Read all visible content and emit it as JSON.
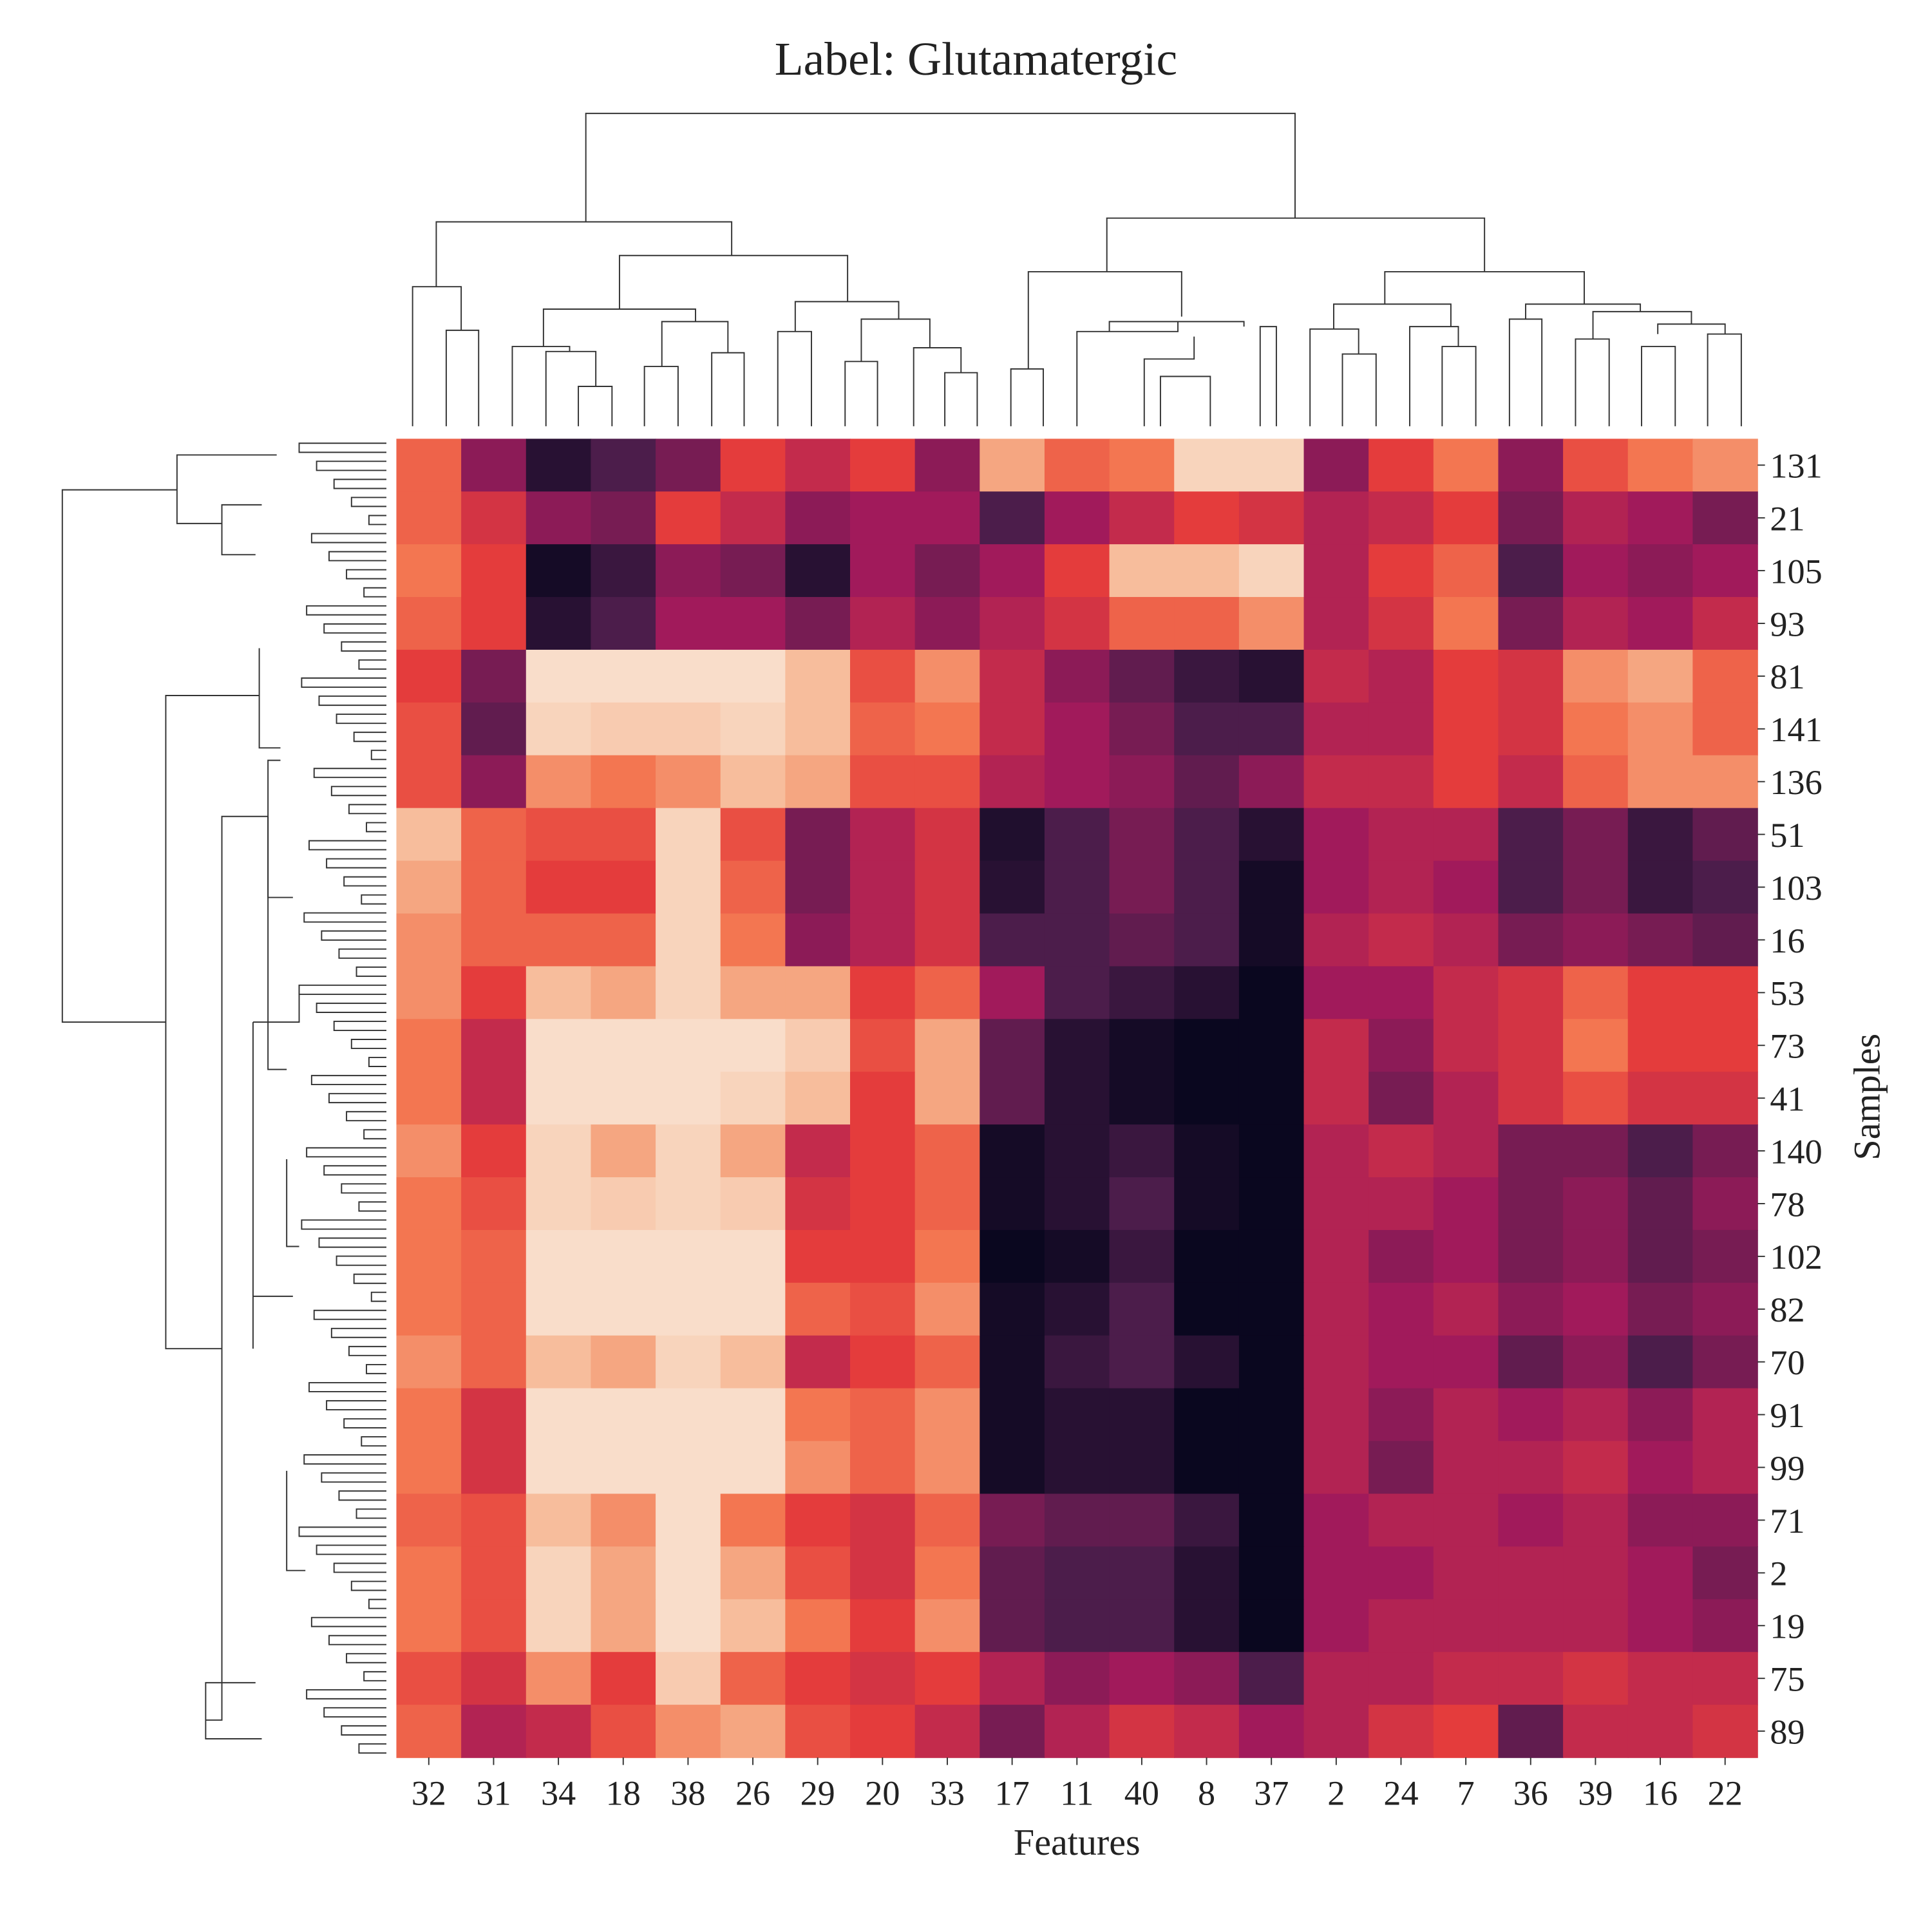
{
  "chart_data": {
    "type": "heatmap",
    "title": "Label: Glutamatergic",
    "x_label": "Features",
    "y_label": "Samples",
    "x_categories": [
      "32",
      "31",
      "34",
      "18",
      "38",
      "26",
      "29",
      "20",
      "33",
      "17",
      "11",
      "40",
      "8",
      "37",
      "2",
      "24",
      "7",
      "36",
      "39",
      "16",
      "22"
    ],
    "y_categories": [
      "131",
      "21",
      "105",
      "93",
      "81",
      "141",
      "136",
      "51",
      "103",
      "16",
      "53",
      "73",
      "41",
      "140",
      "78",
      "102",
      "82",
      "70",
      "91",
      "99",
      "71",
      "2",
      "19",
      "75",
      "89"
    ],
    "values": [
      [
        0.7,
        0.35,
        0.1,
        0.2,
        0.3,
        0.6,
        0.5,
        0.6,
        0.35,
        0.85,
        0.7,
        0.75,
        0.95,
        0.95,
        0.35,
        0.6,
        0.75,
        0.35,
        0.65,
        0.75,
        0.8
      ],
      [
        0.7,
        0.55,
        0.35,
        0.3,
        0.6,
        0.5,
        0.35,
        0.4,
        0.4,
        0.2,
        0.4,
        0.5,
        0.6,
        0.55,
        0.45,
        0.5,
        0.6,
        0.3,
        0.45,
        0.4,
        0.3
      ],
      [
        0.75,
        0.6,
        0.05,
        0.15,
        0.35,
        0.3,
        0.1,
        0.4,
        0.3,
        0.4,
        0.6,
        0.9,
        0.9,
        0.95,
        0.45,
        0.6,
        0.7,
        0.2,
        0.4,
        0.35,
        0.4
      ],
      [
        0.7,
        0.6,
        0.1,
        0.2,
        0.4,
        0.4,
        0.3,
        0.45,
        0.35,
        0.45,
        0.55,
        0.7,
        0.7,
        0.8,
        0.45,
        0.55,
        0.75,
        0.3,
        0.45,
        0.4,
        0.5
      ],
      [
        0.6,
        0.3,
        0.97,
        0.97,
        0.97,
        0.97,
        0.9,
        0.65,
        0.8,
        0.5,
        0.35,
        0.25,
        0.15,
        0.1,
        0.5,
        0.45,
        0.6,
        0.55,
        0.8,
        0.85,
        0.7
      ],
      [
        0.65,
        0.25,
        0.95,
        0.93,
        0.93,
        0.95,
        0.9,
        0.7,
        0.75,
        0.5,
        0.4,
        0.3,
        0.2,
        0.2,
        0.45,
        0.45,
        0.6,
        0.55,
        0.75,
        0.8,
        0.7
      ],
      [
        0.65,
        0.35,
        0.8,
        0.75,
        0.8,
        0.9,
        0.85,
        0.65,
        0.65,
        0.45,
        0.4,
        0.35,
        0.25,
        0.35,
        0.5,
        0.5,
        0.6,
        0.5,
        0.7,
        0.8,
        0.8
      ],
      [
        0.9,
        0.7,
        0.65,
        0.65,
        0.95,
        0.65,
        0.3,
        0.45,
        0.55,
        0.08,
        0.2,
        0.3,
        0.2,
        0.1,
        0.4,
        0.45,
        0.45,
        0.2,
        0.3,
        0.15,
        0.25
      ],
      [
        0.85,
        0.7,
        0.6,
        0.6,
        0.95,
        0.7,
        0.3,
        0.45,
        0.55,
        0.1,
        0.2,
        0.3,
        0.2,
        0.05,
        0.4,
        0.45,
        0.4,
        0.2,
        0.3,
        0.15,
        0.2
      ],
      [
        0.8,
        0.7,
        0.7,
        0.7,
        0.95,
        0.75,
        0.35,
        0.45,
        0.55,
        0.2,
        0.2,
        0.25,
        0.2,
        0.05,
        0.45,
        0.5,
        0.45,
        0.3,
        0.35,
        0.3,
        0.25
      ],
      [
        0.8,
        0.6,
        0.9,
        0.85,
        0.95,
        0.85,
        0.85,
        0.6,
        0.7,
        0.4,
        0.2,
        0.15,
        0.1,
        0.02,
        0.4,
        0.4,
        0.5,
        0.55,
        0.7,
        0.6,
        0.6
      ],
      [
        0.75,
        0.5,
        0.97,
        0.97,
        0.97,
        0.97,
        0.93,
        0.65,
        0.85,
        0.25,
        0.1,
        0.05,
        0.02,
        0.02,
        0.5,
        0.35,
        0.5,
        0.55,
        0.75,
        0.6,
        0.6
      ],
      [
        0.75,
        0.5,
        0.97,
        0.97,
        0.97,
        0.95,
        0.9,
        0.6,
        0.85,
        0.25,
        0.1,
        0.05,
        0.02,
        0.02,
        0.5,
        0.3,
        0.45,
        0.55,
        0.65,
        0.55,
        0.55
      ],
      [
        0.8,
        0.6,
        0.95,
        0.85,
        0.95,
        0.85,
        0.5,
        0.6,
        0.7,
        0.05,
        0.1,
        0.15,
        0.05,
        0.02,
        0.45,
        0.5,
        0.45,
        0.3,
        0.3,
        0.2,
        0.3
      ],
      [
        0.75,
        0.65,
        0.95,
        0.93,
        0.95,
        0.93,
        0.55,
        0.6,
        0.7,
        0.05,
        0.1,
        0.2,
        0.05,
        0.02,
        0.45,
        0.45,
        0.4,
        0.3,
        0.35,
        0.25,
        0.35
      ],
      [
        0.75,
        0.7,
        0.97,
        0.97,
        0.97,
        0.97,
        0.6,
        0.6,
        0.75,
        0.02,
        0.05,
        0.15,
        0.02,
        0.02,
        0.45,
        0.35,
        0.4,
        0.3,
        0.35,
        0.25,
        0.3
      ],
      [
        0.75,
        0.7,
        0.97,
        0.97,
        0.97,
        0.97,
        0.7,
        0.65,
        0.8,
        0.05,
        0.1,
        0.2,
        0.02,
        0.02,
        0.45,
        0.4,
        0.45,
        0.35,
        0.4,
        0.3,
        0.35
      ],
      [
        0.8,
        0.7,
        0.9,
        0.85,
        0.95,
        0.9,
        0.5,
        0.6,
        0.7,
        0.05,
        0.15,
        0.2,
        0.1,
        0.02,
        0.45,
        0.4,
        0.4,
        0.25,
        0.35,
        0.2,
        0.3
      ],
      [
        0.75,
        0.55,
        0.97,
        0.97,
        0.97,
        0.97,
        0.75,
        0.7,
        0.8,
        0.05,
        0.1,
        0.1,
        0.02,
        0.02,
        0.45,
        0.35,
        0.45,
        0.4,
        0.45,
        0.35,
        0.45
      ],
      [
        0.75,
        0.55,
        0.97,
        0.97,
        0.97,
        0.97,
        0.8,
        0.7,
        0.8,
        0.05,
        0.1,
        0.1,
        0.02,
        0.02,
        0.45,
        0.3,
        0.45,
        0.45,
        0.5,
        0.4,
        0.45
      ],
      [
        0.7,
        0.65,
        0.9,
        0.8,
        0.97,
        0.75,
        0.6,
        0.55,
        0.7,
        0.3,
        0.25,
        0.25,
        0.15,
        0.02,
        0.4,
        0.45,
        0.45,
        0.4,
        0.45,
        0.35,
        0.35
      ],
      [
        0.75,
        0.65,
        0.95,
        0.85,
        0.97,
        0.85,
        0.65,
        0.55,
        0.75,
        0.25,
        0.2,
        0.2,
        0.1,
        0.02,
        0.4,
        0.4,
        0.45,
        0.45,
        0.45,
        0.4,
        0.3
      ],
      [
        0.75,
        0.65,
        0.95,
        0.85,
        0.97,
        0.9,
        0.75,
        0.6,
        0.8,
        0.25,
        0.2,
        0.2,
        0.1,
        0.02,
        0.4,
        0.45,
        0.45,
        0.45,
        0.45,
        0.4,
        0.35
      ],
      [
        0.65,
        0.55,
        0.8,
        0.6,
        0.93,
        0.7,
        0.6,
        0.55,
        0.6,
        0.45,
        0.35,
        0.4,
        0.35,
        0.2,
        0.45,
        0.45,
        0.5,
        0.5,
        0.55,
        0.5,
        0.5
      ],
      [
        0.7,
        0.45,
        0.5,
        0.65,
        0.8,
        0.85,
        0.65,
        0.6,
        0.5,
        0.3,
        0.45,
        0.55,
        0.5,
        0.4,
        0.45,
        0.55,
        0.6,
        0.25,
        0.5,
        0.5,
        0.55
      ]
    ]
  }
}
